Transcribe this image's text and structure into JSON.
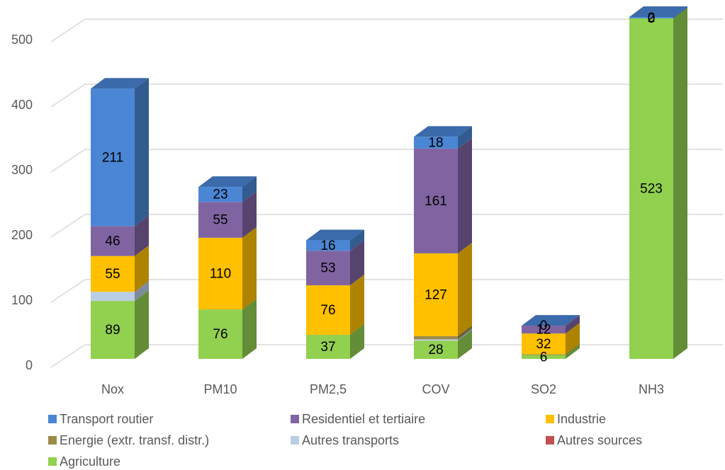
{
  "chart_data": {
    "type": "bar3d_stacked",
    "categories": [
      "Nox",
      "PM10",
      "PM2,5",
      "COV",
      "SO2",
      "NH3"
    ],
    "series": [
      {
        "name": "Transport routier",
        "color": "#4a86d4",
        "values": [
          211,
          23,
          16,
          18,
          0,
          2
        ],
        "data_labels": true
      },
      {
        "name": "Residentiel et tertiaire",
        "color": "#8064a2",
        "values": [
          46,
          55,
          53,
          161,
          12,
          0
        ],
        "data_labels": true
      },
      {
        "name": "Industrie",
        "color": "#ffc000",
        "values": [
          55,
          110,
          76,
          127,
          32,
          0
        ],
        "data_labels": true
      },
      {
        "name": "Energie (extr. transf. distr.)",
        "color": "#9c8a4a",
        "values": [
          0,
          0,
          0,
          5,
          1,
          0
        ],
        "data_labels": false
      },
      {
        "name": "Autres transports",
        "color": "#b9cde5",
        "values": [
          14,
          0,
          0,
          2,
          0,
          0
        ],
        "data_labels": false
      },
      {
        "name": "Autres sources",
        "color": "#c0504d",
        "values": [
          0,
          0,
          0,
          0,
          0,
          0
        ],
        "data_labels": false
      },
      {
        "name": "Agriculture",
        "color": "#92d050",
        "values": [
          89,
          76,
          37,
          28,
          6,
          523
        ],
        "data_labels": true
      }
    ],
    "ylim": [
      0,
      550
    ],
    "yticks": [
      0,
      100,
      200,
      300,
      400,
      500
    ],
    "grid": true
  }
}
